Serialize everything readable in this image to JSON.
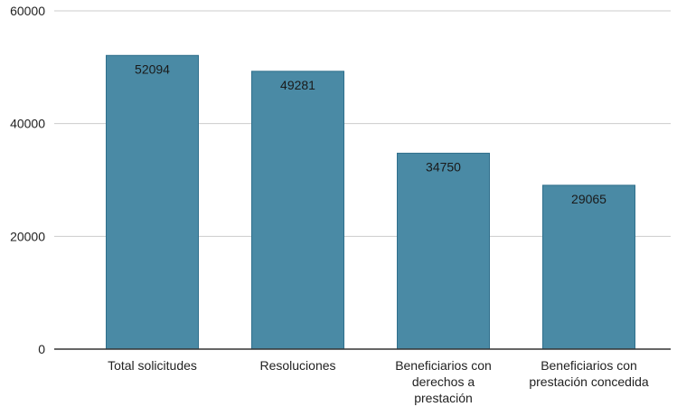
{
  "chart_data": {
    "type": "bar",
    "categories": [
      [
        "Total solicitudes"
      ],
      [
        "Resoluciones"
      ],
      [
        "Beneficiarios con",
        "derechos a",
        "prestación"
      ],
      [
        "Beneficiarios con",
        "prestación concedida"
      ]
    ],
    "values": [
      52094,
      49281,
      34750,
      29065
    ],
    "data_labels": [
      "52094",
      "49281",
      "34750",
      "29065"
    ],
    "y_ticks": [
      0,
      20000,
      40000,
      60000
    ],
    "y_tick_labels": [
      "0",
      "20000",
      "40000",
      "60000"
    ],
    "ylim": [
      0,
      60000
    ],
    "title": "",
    "xlabel": "",
    "ylabel": "",
    "grid": true,
    "legend": "none",
    "colors": {
      "bar": "#4a8aa5",
      "bar_edge": "#2f6f8c",
      "grid": "#cccccc",
      "baseline": "#333333"
    }
  }
}
